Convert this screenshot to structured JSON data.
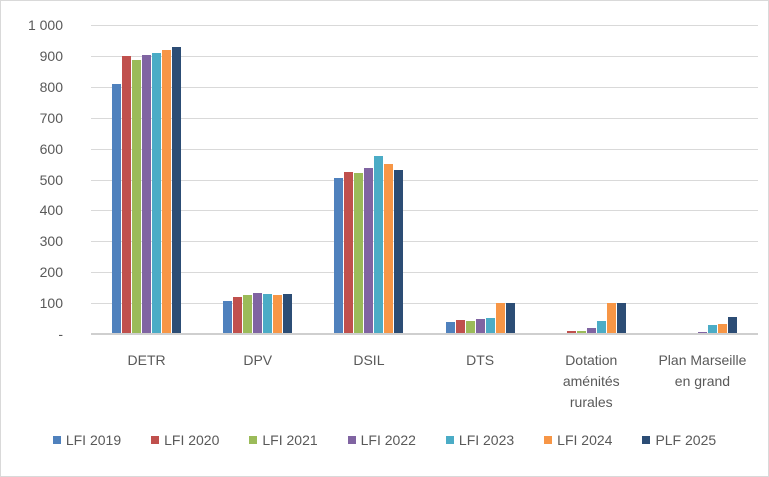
{
  "colors": {
    "background": "#ffffff",
    "border": "#d9d9d9",
    "gridline": "#d9d9d9",
    "axis_line": "#cfcfcf",
    "text": "#595959"
  },
  "chart_data": {
    "type": "bar",
    "title": "",
    "xlabel": "",
    "ylabel": "",
    "ylim": [
      0,
      1000
    ],
    "grid": true,
    "legend_position": "bottom",
    "categories": [
      "DETR",
      "DPV",
      "DSIL",
      "DTS",
      "Dotation aménités rurales",
      "Plan Marseille en grand"
    ],
    "category_lines": [
      [
        "DETR"
      ],
      [
        "DPV"
      ],
      [
        "DSIL"
      ],
      [
        "DTS"
      ],
      [
        "Dotation",
        "aménités",
        "rurales"
      ],
      [
        "Plan Marseille",
        "en grand"
      ]
    ],
    "y_ticks": [
      {
        "value": 1000,
        "label": "1 000"
      },
      {
        "value": 900,
        "label": "900"
      },
      {
        "value": 800,
        "label": "800"
      },
      {
        "value": 700,
        "label": "700"
      },
      {
        "value": 600,
        "label": "600"
      },
      {
        "value": 500,
        "label": "500"
      },
      {
        "value": 400,
        "label": "400"
      },
      {
        "value": 300,
        "label": "300"
      },
      {
        "value": 200,
        "label": "200"
      },
      {
        "value": 100,
        "label": "100"
      },
      {
        "value": 0,
        "label": "-"
      }
    ],
    "series": [
      {
        "name": "LFI 2019",
        "color": "#4F81BD",
        "values": [
          808,
          108,
          504,
          38,
          0,
          0
        ]
      },
      {
        "name": "LFI 2020",
        "color": "#C0504D",
        "values": [
          900,
          121,
          524,
          45,
          10,
          0
        ]
      },
      {
        "name": "LFI 2021",
        "color": "#9BBB59",
        "values": [
          886,
          127,
          522,
          43,
          9,
          0
        ]
      },
      {
        "name": "LFI 2022",
        "color": "#8064A2",
        "values": [
          903,
          133,
          538,
          49,
          21,
          5
        ]
      },
      {
        "name": "LFI 2023",
        "color": "#4BACC6",
        "values": [
          908,
          128,
          577,
          53,
          41,
          28
        ]
      },
      {
        "name": "LFI 2024",
        "color": "#F79646",
        "values": [
          920,
          126,
          549,
          100,
          100,
          32
        ]
      },
      {
        "name": "PLF 2025",
        "color": "#2C4D75",
        "values": [
          928,
          128,
          532,
          100,
          100,
          54
        ]
      }
    ]
  }
}
